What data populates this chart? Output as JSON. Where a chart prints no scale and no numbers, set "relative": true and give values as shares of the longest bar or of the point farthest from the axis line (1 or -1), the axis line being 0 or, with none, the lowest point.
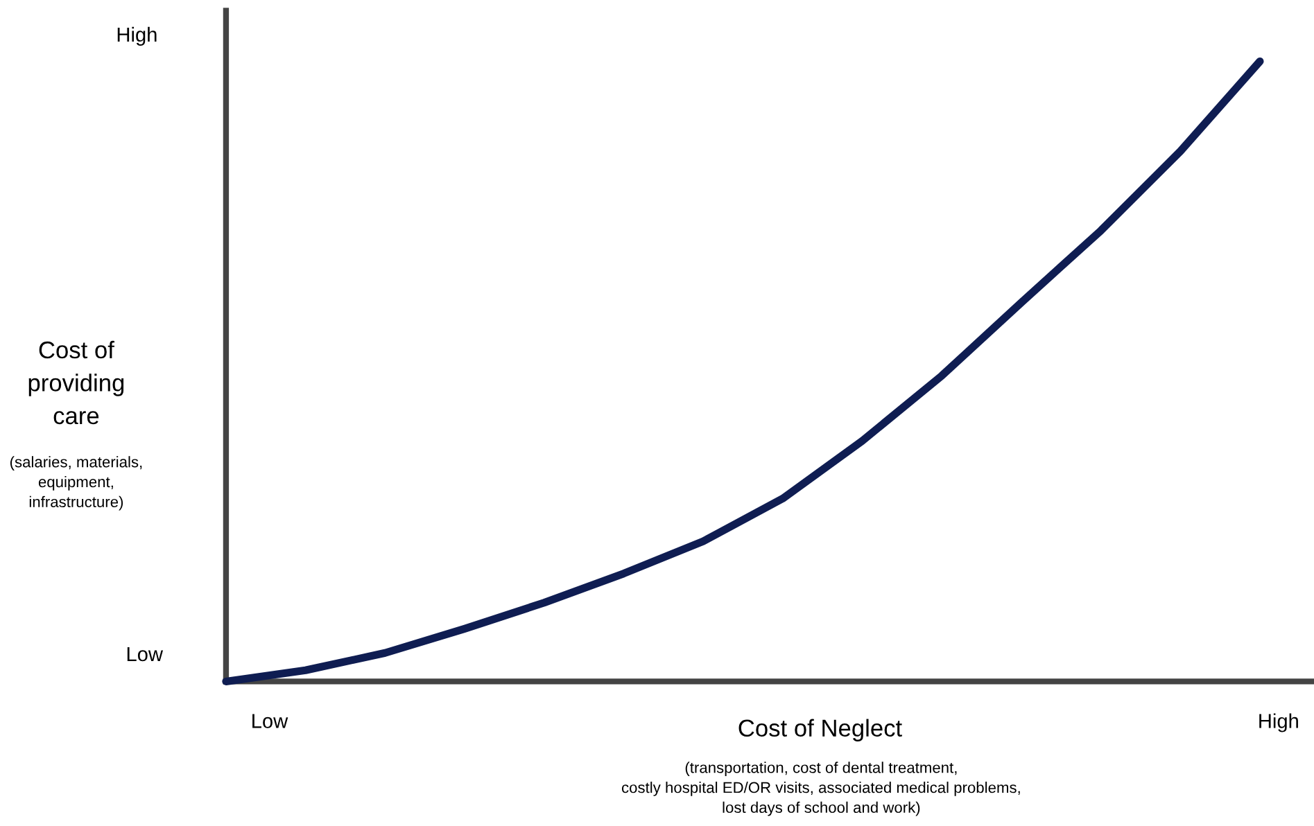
{
  "chart_data": {
    "type": "line",
    "relative": true,
    "xlabel": "Cost of Neglect",
    "ylabel": "Cost of\nproviding\ncare",
    "categories": [
      null,
      null,
      null,
      null,
      null,
      null,
      null,
      null,
      null,
      null,
      null,
      null,
      null,
      null
    ],
    "series": [
      {
        "color": "#0f1d52",
        "values": [
          0,
          0.018,
          0.046,
          0.085,
          0.127,
          0.174,
          0.226,
          0.295,
          0.388,
          0.493,
          0.611,
          0.727,
          0.855,
          1
        ]
      }
    ],
    "annotations": [
      "High",
      "Low",
      "Low",
      "High",
      "(salaries, materials,\nequipment,\ninfrastructure)",
      "(transportation, cost of dental treatment,\ncostly hospital ED/OR visits, associated medical problems,\nlost days of school and work)"
    ],
    "legend": false,
    "marker": "none",
    "line_style": "solid"
  }
}
